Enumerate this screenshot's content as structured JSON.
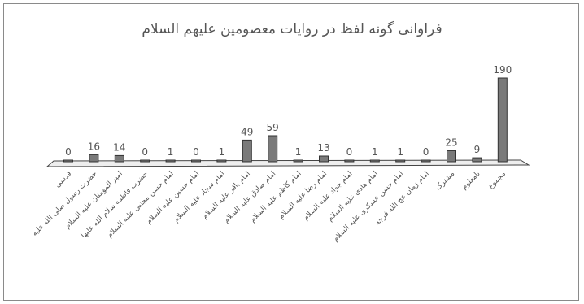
{
  "chart_data": {
    "type": "bar",
    "title": "فراوانی گونه لفظ در روایات معصومین علیهم السلام",
    "categories": [
      "قدسی",
      "حضرت رسول صلی الله علیه",
      "امیر المؤمنان علیه السلام",
      "حضرت فاطمه سلام الله علیها",
      "امام حسن مجتبی علیه السلام",
      "امام حسین علیه السلام",
      "امام سجاد علیه السلام",
      "امام باقر علیه السلام",
      "امام صادق علیه السلام",
      "امام کاظم علیه السلام",
      "امام رضا علیه السلام",
      "امام جواد علیه السلام",
      "امام هادی علیه السلام",
      "امام حسن عسکری علیه السلام",
      "امام زمان عج الله فرجه",
      "مشترک",
      "نامعلوم",
      "مجموع"
    ],
    "values": [
      0,
      16,
      14,
      0,
      1,
      0,
      1,
      49,
      59,
      1,
      13,
      0,
      1,
      1,
      0,
      25,
      9,
      190
    ],
    "ylim": [
      0,
      190
    ],
    "grid": false,
    "legend": "none",
    "bar_color": "#7a7a7a"
  }
}
